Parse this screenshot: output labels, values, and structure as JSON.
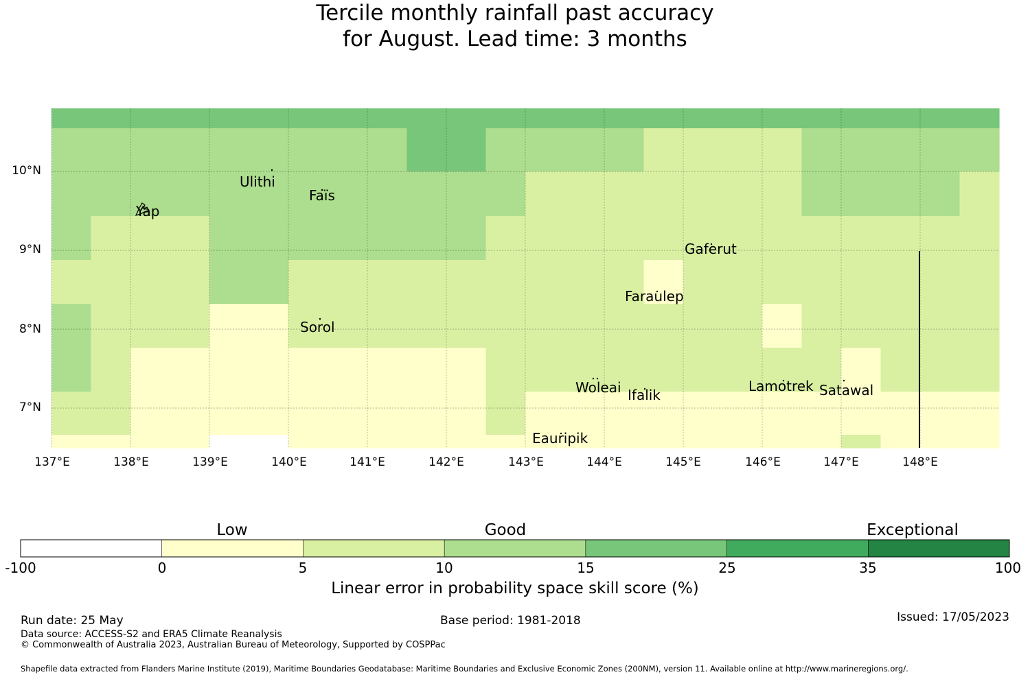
{
  "title_line1": "Tercile monthly rainfall past accuracy",
  "title_line2": "for August. Lead time: 3 months",
  "map": {
    "lat_labels": [
      "10°N",
      "9°N",
      "8°N",
      "7°N"
    ],
    "lon_labels": [
      "137°E",
      "138°E",
      "139°E",
      "140°E",
      "141°E",
      "142°E",
      "143°E",
      "144°E",
      "145°E",
      "146°E",
      "147°E",
      "148°E"
    ],
    "places": [
      {
        "name": "Ulithi"
      },
      {
        "name": "Faïs"
      },
      {
        "name": "Yap"
      },
      {
        "name": "Gaferut"
      },
      {
        "name": "Faraulep"
      },
      {
        "name": "Sorol"
      },
      {
        "name": "Woleai"
      },
      {
        "name": "Ifalik"
      },
      {
        "name": "Lamotrek"
      },
      {
        "name": "Satawal"
      },
      {
        "name": "Eauripik"
      }
    ],
    "skill_grid": [
      [
        4,
        4,
        4,
        4,
        4,
        4,
        4,
        4,
        4,
        4,
        4,
        4,
        4,
        4,
        4,
        4,
        4,
        4,
        4,
        4,
        4,
        4,
        4,
        4
      ],
      [
        3,
        3,
        3,
        3,
        3,
        3,
        3,
        3,
        3,
        4,
        4,
        3,
        3,
        3,
        3,
        2,
        2,
        2,
        2,
        3,
        3,
        3,
        3,
        3
      ],
      [
        3,
        3,
        3,
        3,
        3,
        3,
        3,
        3,
        3,
        3,
        3,
        3,
        2,
        2,
        2,
        2,
        2,
        2,
        2,
        3,
        3,
        3,
        3,
        2
      ],
      [
        3,
        2,
        2,
        2,
        3,
        3,
        3,
        3,
        3,
        3,
        3,
        2,
        2,
        2,
        2,
        2,
        2,
        2,
        2,
        2,
        2,
        2,
        2,
        2
      ],
      [
        2,
        2,
        2,
        2,
        3,
        3,
        2,
        2,
        2,
        2,
        2,
        2,
        2,
        2,
        2,
        1,
        2,
        2,
        2,
        2,
        2,
        2,
        2,
        2
      ],
      [
        3,
        2,
        2,
        2,
        1,
        1,
        2,
        2,
        2,
        2,
        2,
        2,
        2,
        2,
        2,
        2,
        2,
        2,
        1,
        2,
        2,
        2,
        2,
        2
      ],
      [
        3,
        2,
        1,
        1,
        1,
        1,
        1,
        1,
        1,
        1,
        1,
        2,
        2,
        2,
        2,
        2,
        2,
        2,
        2,
        2,
        1,
        2,
        2,
        2
      ],
      [
        2,
        2,
        1,
        1,
        1,
        1,
        1,
        1,
        1,
        1,
        1,
        2,
        1,
        1,
        1,
        1,
        1,
        1,
        1,
        1,
        1,
        1,
        1,
        1
      ],
      [
        1,
        1,
        1,
        1,
        0,
        0,
        1,
        1,
        1,
        1,
        1,
        1,
        1,
        1,
        1,
        1,
        1,
        1,
        1,
        1,
        2,
        1,
        1,
        1
      ]
    ]
  },
  "colorbar": {
    "colors": [
      "#ffffff",
      "#ffffcc",
      "#d9f0a3",
      "#addd8e",
      "#78c679",
      "#41ab5d",
      "#238443"
    ],
    "ticks": [
      "-100",
      "0",
      "5",
      "10",
      "15",
      "25",
      "35",
      "100"
    ],
    "category_labels": [
      "Low",
      "Good",
      "Exceptional"
    ],
    "title": "Linear error in probability space skill score (%)"
  },
  "footer": {
    "run_date": "Run date: 25 May",
    "base_period": "Base period: 1981-2018",
    "issued": "Issued: 17/05/2023",
    "data_source": "Data source: ACCESS-S2 and ERA5 Climate Reanalysis",
    "copyright": "© Commonwealth of Australia 2023, Australian Bureau of Meteorology, Supported by COSPPac",
    "shapefile": "Shapefile data extracted from Flanders Marine Institute (2019), Maritime Boundaries Geodatabase: Maritime Boundaries and Exclusive Economic Zones (200NM), version 11. Available online at http://www.marineregions.org/."
  }
}
